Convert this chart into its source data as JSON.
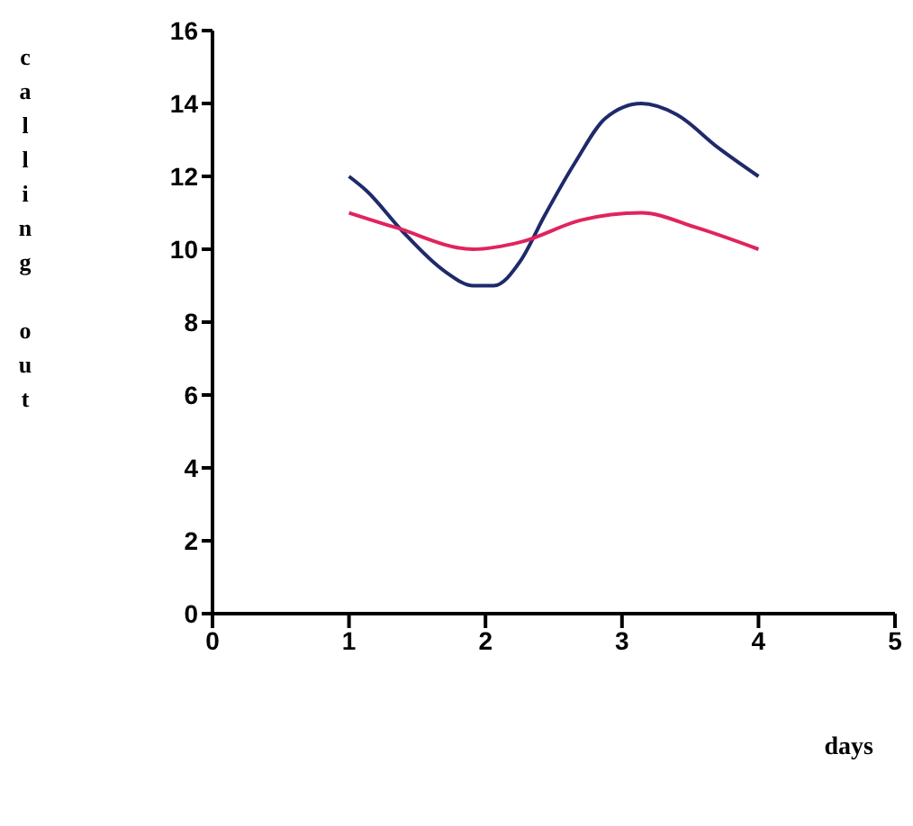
{
  "chart_data": {
    "type": "line",
    "xlabel": "days",
    "ylabel": "calling out",
    "xlim": [
      0,
      5
    ],
    "xticks": [
      0,
      1,
      2,
      3,
      4,
      5
    ],
    "ylim": [
      0,
      16
    ],
    "yticks": [
      0,
      2,
      4,
      6,
      8,
      10,
      12,
      14,
      16
    ],
    "grid": false,
    "marker": "none",
    "series": [
      {
        "color": "#1f2a6b",
        "x": [
          1,
          1.13,
          1.39,
          1.7,
          1.91,
          2.06,
          2.26,
          2.43,
          2.66,
          2.88,
          3.14,
          3.4,
          3.7,
          4
        ],
        "values": [
          12,
          11.6,
          10.5,
          9.4,
          9,
          9,
          9.7,
          10.9,
          12.4,
          13.6,
          14,
          13.7,
          12.8,
          12
        ]
      },
      {
        "color": "#e0245e",
        "x": [
          1,
          1.34,
          1.91,
          2.26,
          2.7,
          3.14,
          3.54,
          4
        ],
        "values": [
          11,
          10.6,
          10,
          10.2,
          10.8,
          11,
          10.6,
          10
        ]
      }
    ]
  }
}
